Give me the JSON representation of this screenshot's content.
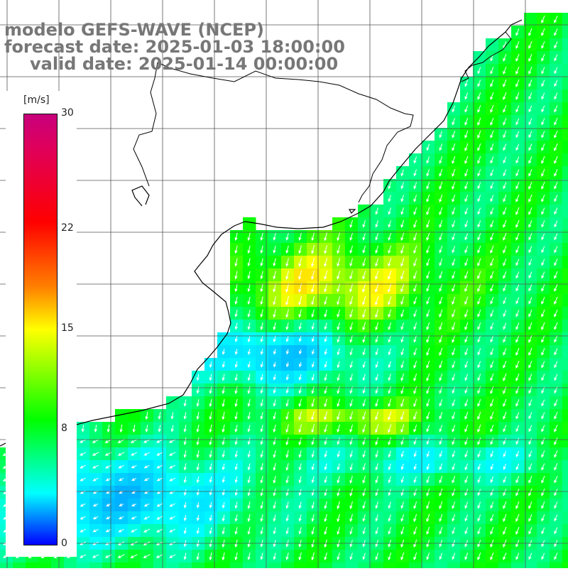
{
  "title": {
    "model": "modelo GEFS-WAVE (NCEP)",
    "forecast": "forecast date: 2025-01-03 18:00:00",
    "valid": "valid date: 2025-01-14 00:00:00"
  },
  "colorbar": {
    "unit": "[m/s]",
    "ticks": [
      {
        "value": 30,
        "label": "30"
      },
      {
        "value": 22,
        "label": "22"
      },
      {
        "value": 15,
        "label": "15"
      },
      {
        "value": 8,
        "label": "8"
      },
      {
        "value": 0,
        "label": "0"
      }
    ],
    "range": [
      0,
      30
    ]
  },
  "colors": {
    "land": "#ffffff",
    "coast": "#000000",
    "grid": "#555555",
    "arrows": "#ffffff"
  }
}
